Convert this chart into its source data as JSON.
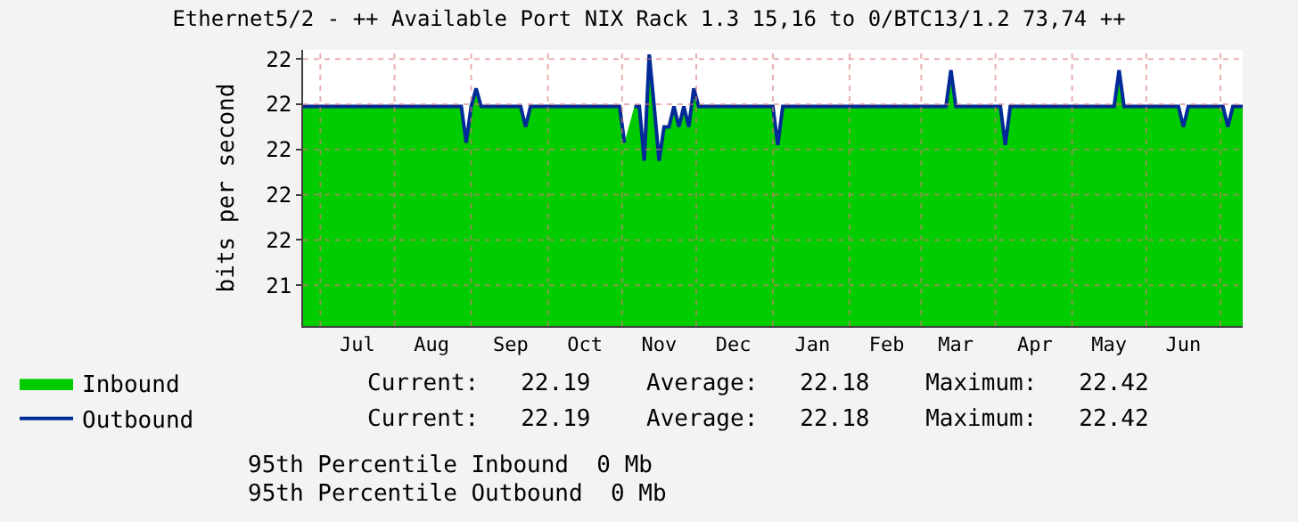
{
  "chart_data": {
    "type": "area",
    "title": "Ethernet5/2 - ++ Available Port NIX Rack 1.3 15,16 to 0/BTC13/1.2 73,74 ++",
    "ylabel": "bits per second",
    "categories": [
      null,
      null,
      null,
      null,
      null,
      null,
      null,
      null,
      null,
      null,
      null,
      "Jul",
      null,
      null,
      null,
      null,
      null,
      null,
      null,
      null,
      null,
      null,
      null,
      null,
      null,
      null,
      "Aug",
      null,
      null,
      null,
      null,
      null,
      null,
      null,
      null,
      null,
      null,
      null,
      null,
      null,
      null,
      null,
      "Sep",
      null,
      null,
      null,
      null,
      null,
      null,
      null,
      null,
      null,
      null,
      null,
      null,
      null,
      null,
      "Oct",
      null,
      null,
      null,
      null,
      null,
      null,
      null,
      null,
      null,
      null,
      null,
      null,
      null,
      null,
      "Nov",
      null,
      null,
      null,
      null,
      null,
      null,
      null,
      null,
      null,
      null,
      null,
      null,
      null,
      null,
      "Dec",
      null,
      null,
      null,
      null,
      null,
      null,
      null,
      null,
      null,
      null,
      null,
      null,
      null,
      null,
      null,
      "Jan",
      null,
      null,
      null,
      null,
      null,
      null,
      null,
      null,
      null,
      null,
      null,
      null,
      null,
      null,
      "Feb",
      null,
      null,
      null,
      null,
      null,
      null,
      null,
      null,
      null,
      null,
      null,
      null,
      null,
      "Mar",
      null,
      null,
      null,
      null,
      null,
      null,
      null,
      null,
      null,
      null,
      null,
      null,
      null,
      null,
      null,
      "Apr",
      null,
      null,
      null,
      null,
      null,
      null,
      null,
      null,
      null,
      null,
      null,
      null,
      null,
      null,
      "May",
      null,
      null,
      null,
      null,
      null,
      null,
      null,
      null,
      null,
      null,
      null,
      null,
      null,
      null,
      "Jun",
      null,
      null,
      null,
      null,
      null,
      null,
      null,
      null,
      null,
      null,
      null,
      null
    ],
    "series": [
      {
        "name": "Inbound",
        "color": "#00cc00",
        "values": [
          22.19,
          22.19,
          22.19,
          22.19,
          22.19,
          22.19,
          22.19,
          22.19,
          22.19,
          22.19,
          22.19,
          22.19,
          22.19,
          22.19,
          22.19,
          22.19,
          22.19,
          22.19,
          22.19,
          22.19,
          22.19,
          22.19,
          22.19,
          22.19,
          22.19,
          22.19,
          22.19,
          22.19,
          22.19,
          22.19,
          22.19,
          22.19,
          22.19,
          22.03,
          22.19,
          22.27,
          22.19,
          22.19,
          22.19,
          22.19,
          22.19,
          22.19,
          22.19,
          22.19,
          22.19,
          22.1,
          22.19,
          22.19,
          22.19,
          22.19,
          22.19,
          22.19,
          22.19,
          22.19,
          22.19,
          22.19,
          22.19,
          22.19,
          22.19,
          22.19,
          22.19,
          22.19,
          22.19,
          22.19,
          22.19,
          22.03,
          null,
          22.19,
          22.19,
          21.95,
          22.42,
          22.19,
          21.95,
          22.1,
          22.1,
          22.19,
          22.1,
          22.19,
          22.1,
          22.27,
          22.19,
          22.19,
          22.19,
          22.19,
          22.19,
          22.19,
          22.19,
          22.19,
          22.19,
          22.19,
          22.19,
          22.19,
          22.19,
          22.19,
          22.19,
          22.19,
          22.02,
          22.19,
          22.19,
          22.19,
          22.19,
          22.19,
          22.19,
          22.19,
          22.19,
          22.19,
          22.19,
          22.19,
          22.19,
          22.19,
          22.19,
          22.19,
          22.19,
          22.19,
          22.19,
          22.19,
          22.19,
          22.19,
          22.19,
          22.19,
          22.19,
          22.19,
          22.19,
          22.19,
          22.19,
          22.19,
          22.19,
          22.19,
          22.19,
          22.19,
          22.19,
          22.35,
          22.19,
          22.19,
          22.19,
          22.19,
          22.19,
          22.19,
          22.19,
          22.19,
          22.19,
          22.19,
          22.02,
          22.19,
          22.19,
          22.19,
          22.19,
          22.19,
          22.19,
          22.19,
          22.19,
          22.19,
          22.19,
          22.19,
          22.19,
          22.19,
          22.19,
          22.19,
          22.19,
          22.19,
          22.19,
          22.19,
          22.19,
          22.19,
          22.19,
          22.35,
          22.19,
          22.19,
          22.19,
          22.19,
          22.19,
          22.19,
          22.19,
          22.19,
          22.19,
          22.19,
          22.19,
          22.19,
          22.1,
          22.19,
          22.19,
          22.19,
          22.19,
          22.19,
          22.19,
          22.19,
          22.19,
          22.1,
          22.19,
          22.19,
          22.19
        ]
      },
      {
        "name": "Outbound",
        "type": "line",
        "color": "#002a97",
        "values": [
          22.19,
          22.19,
          22.19,
          22.19,
          22.19,
          22.19,
          22.19,
          22.19,
          22.19,
          22.19,
          22.19,
          22.19,
          22.19,
          22.19,
          22.19,
          22.19,
          22.19,
          22.19,
          22.19,
          22.19,
          22.19,
          22.19,
          22.19,
          22.19,
          22.19,
          22.19,
          22.19,
          22.19,
          22.19,
          22.19,
          22.19,
          22.19,
          22.19,
          22.03,
          22.19,
          22.27,
          22.19,
          22.19,
          22.19,
          22.19,
          22.19,
          22.19,
          22.19,
          22.19,
          22.19,
          22.1,
          22.19,
          22.19,
          22.19,
          22.19,
          22.19,
          22.19,
          22.19,
          22.19,
          22.19,
          22.19,
          22.19,
          22.19,
          22.19,
          22.19,
          22.19,
          22.19,
          22.19,
          22.19,
          22.19,
          22.03,
          null,
          22.19,
          22.19,
          21.95,
          22.42,
          22.19,
          21.95,
          22.1,
          22.1,
          22.19,
          22.1,
          22.19,
          22.1,
          22.27,
          22.19,
          22.19,
          22.19,
          22.19,
          22.19,
          22.19,
          22.19,
          22.19,
          22.19,
          22.19,
          22.19,
          22.19,
          22.19,
          22.19,
          22.19,
          22.19,
          22.02,
          22.19,
          22.19,
          22.19,
          22.19,
          22.19,
          22.19,
          22.19,
          22.19,
          22.19,
          22.19,
          22.19,
          22.19,
          22.19,
          22.19,
          22.19,
          22.19,
          22.19,
          22.19,
          22.19,
          22.19,
          22.19,
          22.19,
          22.19,
          22.19,
          22.19,
          22.19,
          22.19,
          22.19,
          22.19,
          22.19,
          22.19,
          22.19,
          22.19,
          22.19,
          22.35,
          22.19,
          22.19,
          22.19,
          22.19,
          22.19,
          22.19,
          22.19,
          22.19,
          22.19,
          22.19,
          22.02,
          22.19,
          22.19,
          22.19,
          22.19,
          22.19,
          22.19,
          22.19,
          22.19,
          22.19,
          22.19,
          22.19,
          22.19,
          22.19,
          22.19,
          22.19,
          22.19,
          22.19,
          22.19,
          22.19,
          22.19,
          22.19,
          22.19,
          22.35,
          22.19,
          22.19,
          22.19,
          22.19,
          22.19,
          22.19,
          22.19,
          22.19,
          22.19,
          22.19,
          22.19,
          22.19,
          22.1,
          22.19,
          22.19,
          22.19,
          22.19,
          22.19,
          22.19,
          22.19,
          22.19,
          22.1,
          22.19,
          22.19,
          22.19
        ]
      }
    ],
    "ylim": [
      21.22,
      22.44
    ],
    "yticks": [
      {
        "value": 21.4,
        "label": "21"
      },
      {
        "value": 21.6,
        "label": "22"
      },
      {
        "value": 21.8,
        "label": "22"
      },
      {
        "value": 22.0,
        "label": "22"
      },
      {
        "value": 22.2,
        "label": "22"
      },
      {
        "value": 22.4,
        "label": "22"
      }
    ],
    "grid": true,
    "legend": "bottom left",
    "annotations": [
      "Current:   22.19    Average:   22.18    Maximum:   22.42",
      "Current:   22.19    Average:   22.18    Maximum:   22.42",
      "95th Percentile Inbound  0 Mb",
      "95th Percentile Outbound  0 Mb"
    ]
  }
}
